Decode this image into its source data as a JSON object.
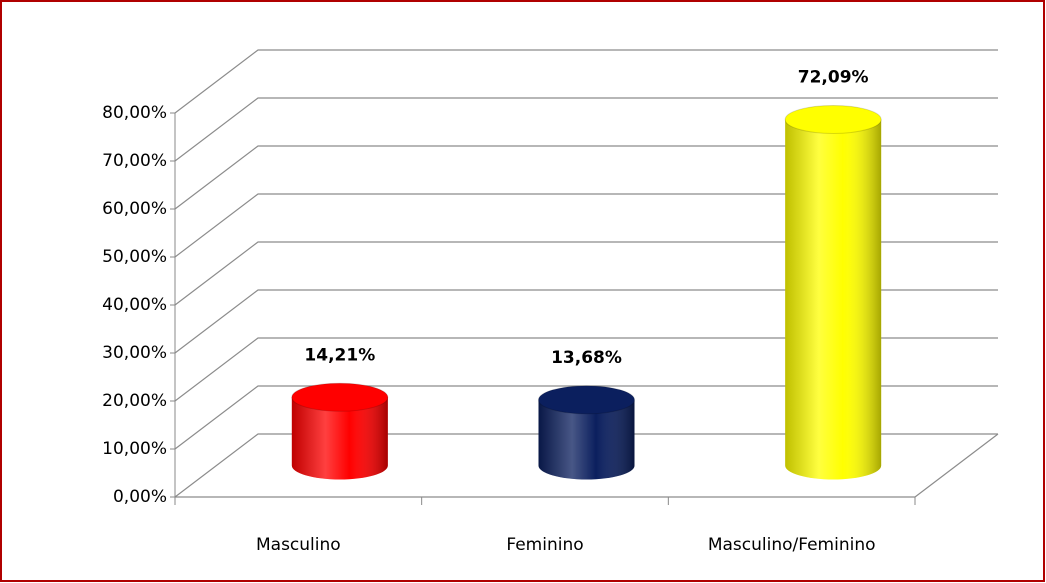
{
  "chart_data": {
    "type": "bar3d",
    "categories": [
      "Masculino",
      "Feminino",
      "Masculino/Feminino"
    ],
    "values": [
      14.21,
      13.68,
      72.09
    ],
    "value_labels": [
      "14,21%",
      "13,68%",
      "72,09%"
    ],
    "colors": [
      "#ff0000",
      "#0b1f5e",
      "#ffff00"
    ],
    "ylim": [
      0,
      80
    ],
    "yticks": [
      {
        "value": 0,
        "label": "0,00%"
      },
      {
        "value": 10,
        "label": "10,00%"
      },
      {
        "value": 20,
        "label": "20,00%"
      },
      {
        "value": 30,
        "label": "30,00%"
      },
      {
        "value": 40,
        "label": "40,00%"
      },
      {
        "value": 50,
        "label": "50,00%"
      },
      {
        "value": 60,
        "label": "60,00%"
      },
      {
        "value": 70,
        "label": "70,00%"
      },
      {
        "value": 80,
        "label": "80,00%"
      }
    ],
    "grid": true
  }
}
